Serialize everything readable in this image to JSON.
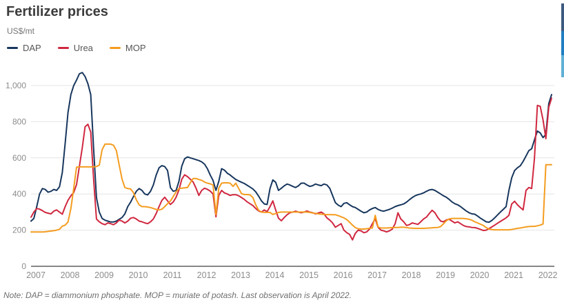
{
  "page": {
    "title": "Fertilizer prices",
    "unit_label": "US$/mt",
    "note": "Note: DAP = diammonium phosphate. MOP = muriate of potash. Last observation is April 2022."
  },
  "legend": {
    "items": [
      {
        "label": "DAP"
      },
      {
        "label": "Urea"
      },
      {
        "label": "MOP"
      }
    ]
  },
  "colors": {
    "title_text": "#3c3c3c",
    "unit_text": "#757575",
    "tick_text": "#8c8c8c",
    "grid": "#e4e4e4",
    "axis": "#3f3f3f",
    "note_text": "#6f6f6f",
    "edge_bar_segments": [
      "#3d5a80",
      "#1f7ec2",
      "#5fb0d4"
    ]
  },
  "chart_data": {
    "type": "line",
    "title": "Fertilizer prices",
    "ylabel": "US$/mt",
    "xlabel": "",
    "grid": "horizontal",
    "legend_position": "top-left",
    "x_interval": "monthly",
    "x_start": "2007-01",
    "x_end": "2022-04",
    "x_tick_labels": [
      "2007",
      "2008",
      "2009",
      "2010",
      "2011",
      "2012",
      "2013",
      "2014",
      "2015",
      "2016",
      "2017",
      "2018",
      "2019",
      "2020",
      "2021",
      "2022"
    ],
    "y_ticks": [
      0,
      200,
      400,
      600,
      800,
      1000
    ],
    "y_tick_labels": [
      "0",
      "200",
      "400",
      "600",
      "800",
      "1,000"
    ],
    "ylim": [
      0,
      1080
    ],
    "series": [
      {
        "name": "DAP",
        "color": "#17365d",
        "values": [
          250,
          265,
          330,
          400,
          430,
          425,
          410,
          415,
          425,
          420,
          440,
          520,
          680,
          850,
          950,
          1000,
          1030,
          1065,
          1072,
          1050,
          1010,
          950,
          650,
          380,
          300,
          265,
          255,
          250,
          245,
          245,
          250,
          260,
          270,
          290,
          330,
          355,
          385,
          415,
          430,
          420,
          400,
          395,
          415,
          450,
          505,
          545,
          557,
          552,
          530,
          435,
          415,
          420,
          470,
          555,
          595,
          605,
          600,
          595,
          590,
          585,
          578,
          565,
          540,
          505,
          475,
          420,
          470,
          540,
          532,
          515,
          505,
          492,
          480,
          472,
          465,
          458,
          448,
          438,
          428,
          412,
          388,
          362,
          345,
          342,
          430,
          478,
          465,
          420,
          432,
          445,
          455,
          450,
          442,
          436,
          445,
          460,
          460,
          450,
          442,
          446,
          455,
          450,
          446,
          455,
          450,
          432,
          392,
          352,
          338,
          330,
          348,
          352,
          340,
          330,
          325,
          315,
          305,
          296,
          300,
          312,
          320,
          325,
          315,
          308,
          305,
          310,
          315,
          322,
          330,
          336,
          340,
          345,
          355,
          368,
          380,
          390,
          396,
          400,
          406,
          415,
          422,
          425,
          420,
          410,
          400,
          390,
          382,
          370,
          356,
          346,
          340,
          330,
          318,
          306,
          296,
          290,
          288,
          278,
          266,
          256,
          246,
          244,
          254,
          268,
          284,
          300,
          315,
          330,
          420,
          490,
          530,
          545,
          556,
          580,
          610,
          640,
          650,
          700,
          748,
          738,
          712,
          730,
          900,
          950
        ]
      },
      {
        "name": "Urea",
        "color": "#d0273f",
        "values": [
          272,
          300,
          320,
          316,
          308,
          298,
          294,
          290,
          305,
          312,
          300,
          288,
          330,
          365,
          390,
          408,
          452,
          552,
          655,
          772,
          786,
          742,
          480,
          262,
          246,
          236,
          230,
          240,
          236,
          230,
          240,
          256,
          250,
          240,
          250,
          266,
          270,
          262,
          250,
          246,
          240,
          236,
          246,
          262,
          292,
          330,
          365,
          382,
          362,
          342,
          356,
          382,
          422,
          482,
          506,
          496,
          482,
          466,
          432,
          392,
          420,
          432,
          426,
          416,
          400,
          274,
          392,
          420,
          406,
          400,
          392,
          396,
          396,
          390,
          380,
          370,
          356,
          346,
          336,
          320,
          306,
          300,
          312,
          302,
          330,
          362,
          312,
          266,
          252,
          270,
          285,
          296,
          300,
          305,
          300,
          296,
          300,
          306,
          300,
          296,
          290,
          295,
          300,
          290,
          268,
          256,
          240,
          216,
          226,
          236,
          200,
          186,
          176,
          146,
          182,
          200,
          196,
          186,
          190,
          206,
          236,
          263,
          216,
          200,
          196,
          190,
          196,
          206,
          236,
          296,
          262,
          246,
          226,
          230,
          240,
          236,
          232,
          246,
          262,
          272,
          292,
          310,
          296,
          270,
          250,
          246,
          256,
          260,
          250,
          240,
          246,
          236,
          226,
          220,
          218,
          215,
          214,
          210,
          204,
          198,
          200,
          208,
          218,
          228,
          238,
          248,
          258,
          268,
          282,
          345,
          360,
          340,
          325,
          312,
          420,
          436,
          430,
          600,
          890,
          885,
          810,
          706,
          880,
          930
        ]
      },
      {
        "name": "MOP",
        "color": "#f49c1f",
        "values": [
          190,
          190,
          190,
          190,
          190,
          191,
          193,
          195,
          197,
          200,
          205,
          222,
          228,
          245,
          320,
          430,
          548,
          550,
          550,
          550,
          550,
          550,
          550,
          552,
          560,
          645,
          676,
          676,
          676,
          670,
          640,
          560,
          482,
          436,
          430,
          428,
          408,
          368,
          340,
          330,
          330,
          328,
          325,
          320,
          315,
          312,
          316,
          330,
          346,
          362,
          386,
          412,
          430,
          432,
          434,
          436,
          462,
          486,
          486,
          480,
          476,
          466,
          460,
          456,
          450,
          286,
          432,
          460,
          462,
          462,
          460,
          442,
          460,
          430,
          402,
          397,
          397,
          395,
          380,
          340,
          310,
          300,
          298,
          298,
          298,
          287,
          292,
          298,
          300,
          300,
          300,
          300,
          300,
          300,
          300,
          300,
          300,
          300,
          298,
          295,
          293,
          290,
          288,
          287,
          286,
          286,
          285,
          285,
          280,
          274,
          268,
          258,
          244,
          228,
          214,
          208,
          206,
          206,
          208,
          210,
          212,
          282,
          218,
          212,
          212,
          212,
          213,
          214,
          215,
          215,
          216,
          216,
          214,
          212,
          211,
          210,
          210,
          210,
          210,
          211,
          212,
          213,
          214,
          215,
          220,
          235,
          252,
          262,
          265,
          265,
          265,
          265,
          265,
          263,
          260,
          255,
          246,
          240,
          233,
          226,
          214,
          206,
          203,
          202,
          202,
          202,
          202,
          202,
          202,
          204,
          207,
          210,
          212,
          215,
          218,
          220,
          221,
          221,
          224,
          228,
          234,
          562,
          562,
          562
        ]
      }
    ]
  }
}
